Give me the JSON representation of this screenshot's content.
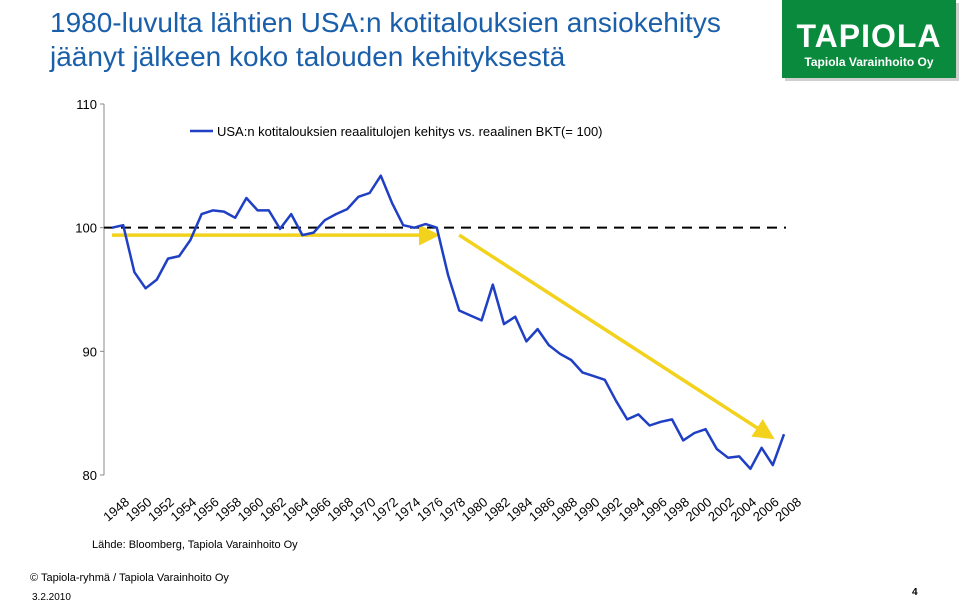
{
  "slide": {
    "title_lines": [
      "1980-luvulta lähtien USA:n kotitalouksien ansiokehitys",
      "jäänyt jälkeen koko talouden kehityksestä"
    ],
    "logo": {
      "name": "TAPIOLA",
      "subtitle": "Tapiola Varainhoito Oy"
    },
    "footer": {
      "copyright": "© Tapiola-ryhmä / Tapiola Varainhoito Oy",
      "date": "3.2.2010",
      "page": "4"
    },
    "source": "Lähde: Bloomberg, Tapiola Varainhoito Oy"
  },
  "chart_data": {
    "type": "line",
    "title": "",
    "xlabel": "",
    "ylabel": "",
    "ylim": [
      80,
      110
    ],
    "yticks": [
      80,
      90,
      100,
      110
    ],
    "xticks": [
      "1948",
      "1950",
      "1952",
      "1954",
      "1956",
      "1958",
      "1960",
      "1962",
      "1964",
      "1966",
      "1968",
      "1970",
      "1972",
      "1974",
      "1976",
      "1978",
      "1980",
      "1982",
      "1984",
      "1986",
      "1988",
      "1990",
      "1992",
      "1994",
      "1996",
      "1998",
      "2000",
      "2002",
      "2004",
      "2006",
      "2008"
    ],
    "grid": false,
    "legend_position": "top",
    "colors": {
      "series": "#1f3fc4",
      "reference": "#000000",
      "trend": "#f2d21c"
    },
    "series": [
      {
        "name": "USA:n kotitalouksien reaalitulojen kehitys vs. reaalinen BKT(= 100)",
        "x": [
          1948,
          1949,
          1950,
          1951,
          1952,
          1953,
          1954,
          1955,
          1956,
          1957,
          1958,
          1959,
          1960,
          1961,
          1962,
          1963,
          1964,
          1965,
          1966,
          1967,
          1968,
          1969,
          1970,
          1971,
          1972,
          1973,
          1974,
          1975,
          1976,
          1977,
          1978,
          1979,
          1980,
          1981,
          1982,
          1983,
          1984,
          1985,
          1986,
          1987,
          1988,
          1989,
          1990,
          1991,
          1992,
          1993,
          1994,
          1995,
          1996,
          1997,
          1998,
          1999,
          2000,
          2001,
          2002,
          2003,
          2004,
          2005,
          2006,
          2007,
          2008
        ],
        "values": [
          100.0,
          100.2,
          96.4,
          95.1,
          95.8,
          97.5,
          97.7,
          99.0,
          101.1,
          101.4,
          101.3,
          100.8,
          102.4,
          101.4,
          101.4,
          99.9,
          101.1,
          99.4,
          99.6,
          100.6,
          101.1,
          101.5,
          102.5,
          102.8,
          104.2,
          102.0,
          100.2,
          100.0,
          100.3,
          100.0,
          96.2,
          93.3,
          92.9,
          92.5,
          95.4,
          92.2,
          92.8,
          90.8,
          91.8,
          90.5,
          89.8,
          89.3,
          88.3,
          88.0,
          87.7,
          86.0,
          84.5,
          84.9,
          84.0,
          84.3,
          84.5,
          82.8,
          83.4,
          83.7,
          82.1,
          81.4,
          81.5,
          80.5,
          82.2,
          80.8,
          83.3
        ]
      }
    ],
    "reference_line": {
      "value": 100,
      "style": "dashed"
    },
    "trend_arrows": [
      {
        "from": [
          1948,
          99.4
        ],
        "to": [
          1977,
          99.4
        ]
      },
      {
        "from": [
          1979,
          99.4
        ],
        "to": [
          2007,
          83.2
        ]
      }
    ]
  }
}
